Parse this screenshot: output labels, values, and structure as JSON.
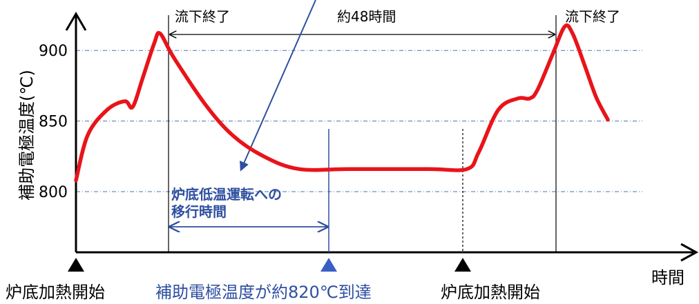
{
  "chart_data": {
    "type": "line",
    "ylabel": "補助電極温度(℃)",
    "xlabel": "時間",
    "y_ticks": [
      800,
      850,
      900
    ],
    "grid": "horizontal dash-dot at y ticks",
    "series": [
      {
        "color": "#e8141a",
        "points": [
          [
            0.0,
            808
          ],
          [
            3.0,
            840
          ],
          [
            8.0,
            858
          ],
          [
            12.5,
            864
          ],
          [
            14.5,
            860
          ],
          [
            17.0,
            880
          ],
          [
            20.0,
            905
          ],
          [
            21.5,
            912
          ],
          [
            25.0,
            895
          ],
          [
            33.0,
            862
          ],
          [
            40.0,
            840
          ],
          [
            48.0,
            825
          ],
          [
            57.0,
            816
          ],
          [
            70.0,
            816
          ],
          [
            90.0,
            816
          ],
          [
            100.0,
            816
          ],
          [
            103.0,
            828
          ],
          [
            108.0,
            858
          ],
          [
            113.0,
            866
          ],
          [
            116.0,
            866
          ],
          [
            118.0,
            872
          ],
          [
            122.0,
            898
          ],
          [
            125.0,
            917
          ],
          [
            127.0,
            912
          ],
          [
            130.0,
            890
          ],
          [
            133.0,
            867
          ],
          [
            136.0,
            851
          ]
        ]
      }
    ],
    "x_range": [
      0,
      136
    ],
    "y_range": [
      757,
      925
    ]
  },
  "annotations": {
    "end_left": "流下終了",
    "end_right": "流下終了",
    "duration": "約48時間",
    "transition": [
      "炉底低温運転への",
      "移行時間"
    ],
    "markers": {
      "heat_start_1": "炉底加熱開始",
      "reach_820": "補助電極温度が約820℃到達",
      "heat_start_2": "炉底加熱開始"
    }
  },
  "colors": {
    "series": "#e8141a",
    "annotation_blue": "#2e4fa0",
    "marker_blue": "#3a5fc4",
    "grid": "#4a6fb5",
    "axis": "#000000"
  }
}
